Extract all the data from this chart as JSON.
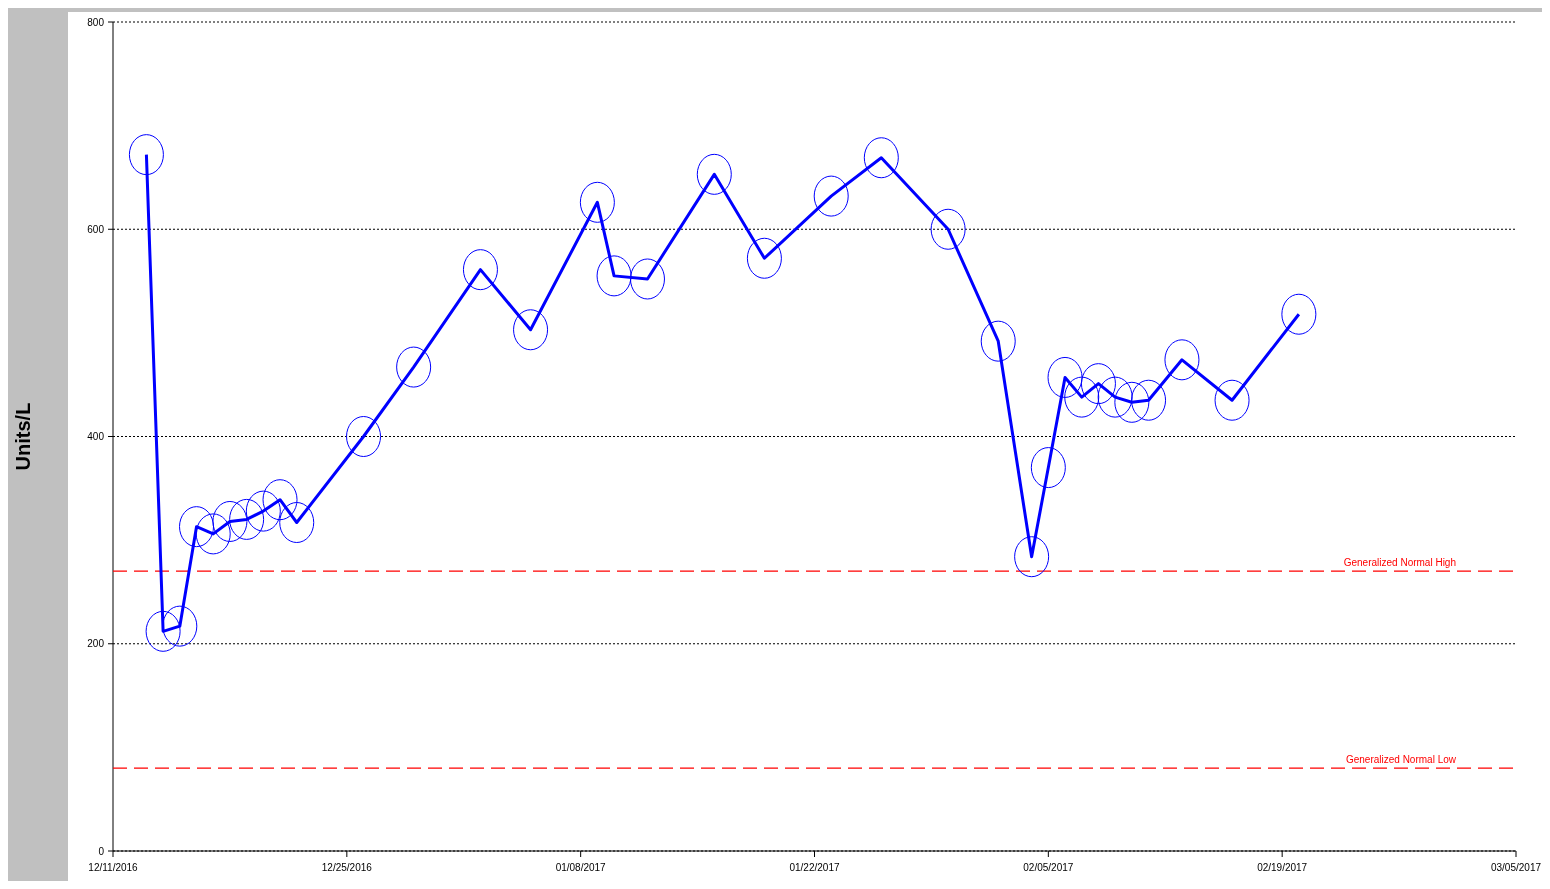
{
  "chart_data": {
    "type": "line",
    "ylabel": "Units/L",
    "x": [
      "2016-12-13",
      "2016-12-14",
      "2016-12-15",
      "2016-12-16",
      "2016-12-17",
      "2016-12-18",
      "2016-12-19",
      "2016-12-20",
      "2016-12-21",
      "2016-12-22",
      "2016-12-26",
      "2016-12-29",
      "2017-01-02",
      "2017-01-05",
      "2017-01-09",
      "2017-01-10",
      "2017-01-12",
      "2017-01-16",
      "2017-01-19",
      "2017-01-23",
      "2017-01-26",
      "2017-01-30",
      "2017-02-02",
      "2017-02-04",
      "2017-02-05",
      "2017-02-06",
      "2017-02-07",
      "2017-02-08",
      "2017-02-09",
      "2017-02-10",
      "2017-02-11",
      "2017-02-13",
      "2017-02-16",
      "2017-02-20"
    ],
    "series": [
      {
        "color": "#0000ff",
        "values": [
          672,
          212,
          217,
          313,
          306,
          318,
          320,
          328,
          339,
          317,
          400,
          467,
          561,
          503,
          626,
          555,
          552,
          653,
          572,
          632,
          669,
          600,
          492,
          284,
          370,
          457,
          438,
          451,
          438,
          433,
          435,
          474,
          435,
          518
        ]
      }
    ],
    "xlim": [
      "2016-12-11",
      "2017-03-05"
    ],
    "xticks": [
      {
        "value": "2016-12-11",
        "label": "12/11/2016"
      },
      {
        "value": "2016-12-25",
        "label": "12/25/2016"
      },
      {
        "value": "2017-01-08",
        "label": "01/08/2017"
      },
      {
        "value": "2017-01-22",
        "label": "01/22/2017"
      },
      {
        "value": "2017-02-05",
        "label": "02/05/2017"
      },
      {
        "value": "2017-02-19",
        "label": "02/19/2017"
      },
      {
        "value": "2017-03-05",
        "label": "03/05/2017"
      }
    ],
    "ylim": [
      0,
      800
    ],
    "yticks": [
      0,
      200,
      400,
      600,
      800
    ],
    "grid": "y",
    "marker": "circle",
    "line_style": "solid",
    "ref_lines": [
      {
        "axis": "y",
        "value": 270,
        "label": "Generalized Normal High",
        "color": "#ff0000",
        "line_style": "dashed"
      },
      {
        "axis": "y",
        "value": 80,
        "label": "Generalized Normal Low",
        "color": "#ff0000",
        "line_style": "dashed"
      }
    ]
  }
}
